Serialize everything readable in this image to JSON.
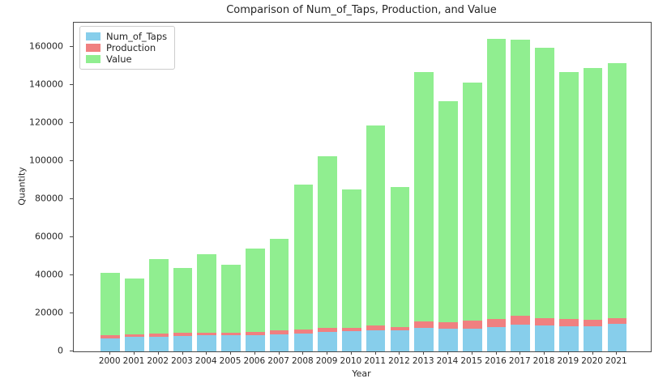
{
  "title": "Comparison of Num_of_Taps, Production, and Value",
  "chart_data": {
    "type": "bar",
    "stacked": true,
    "title": "Comparison of Num_of_Taps, Production, and Value",
    "xlabel": "Year",
    "ylabel": "Quantity",
    "categories": [
      "2000",
      "2001",
      "2002",
      "2003",
      "2004",
      "2005",
      "2006",
      "2007",
      "2008",
      "2009",
      "2010",
      "2011",
      "2012",
      "2013",
      "2014",
      "2015",
      "2016",
      "2017",
      "2018",
      "2019",
      "2020",
      "2021"
    ],
    "series": [
      {
        "name": "Num_of_Taps",
        "color": "#87CEEB",
        "values": [
          7000,
          7600,
          7700,
          8100,
          8400,
          8400,
          8600,
          9100,
          9500,
          10100,
          10500,
          11200,
          10900,
          12300,
          11800,
          12000,
          12900,
          14000,
          13600,
          13300,
          13300,
          14300
        ]
      },
      {
        "name": "Production",
        "color": "#F08080",
        "values": [
          1400,
          1500,
          1700,
          1600,
          1600,
          1500,
          1700,
          1800,
          2000,
          2200,
          1900,
          2400,
          1700,
          3400,
          3400,
          4200,
          4300,
          4800,
          4000,
          3700,
          3400,
          3300
        ]
      },
      {
        "name": "Value",
        "color": "#90EE90",
        "values": [
          33100,
          29400,
          39100,
          34300,
          41000,
          35600,
          43700,
          48400,
          76200,
          90200,
          72600,
          105000,
          73700,
          131300,
          116400,
          125300,
          147300,
          145200,
          142100,
          130000,
          132300,
          133900
        ]
      }
    ],
    "stacked_totals": [
      41500,
      38500,
      48500,
      44000,
      51000,
      45500,
      54000,
      59300,
      87700,
      102500,
      85000,
      118600,
      86300,
      147000,
      131600,
      141500,
      164500,
      164000,
      159700,
      147000,
      149000,
      151500
    ],
    "ylim": [
      0,
      172800
    ],
    "yticks": [
      0,
      20000,
      40000,
      60000,
      80000,
      100000,
      120000,
      140000,
      160000
    ],
    "legend_position": "upper-left",
    "grid": false
  }
}
